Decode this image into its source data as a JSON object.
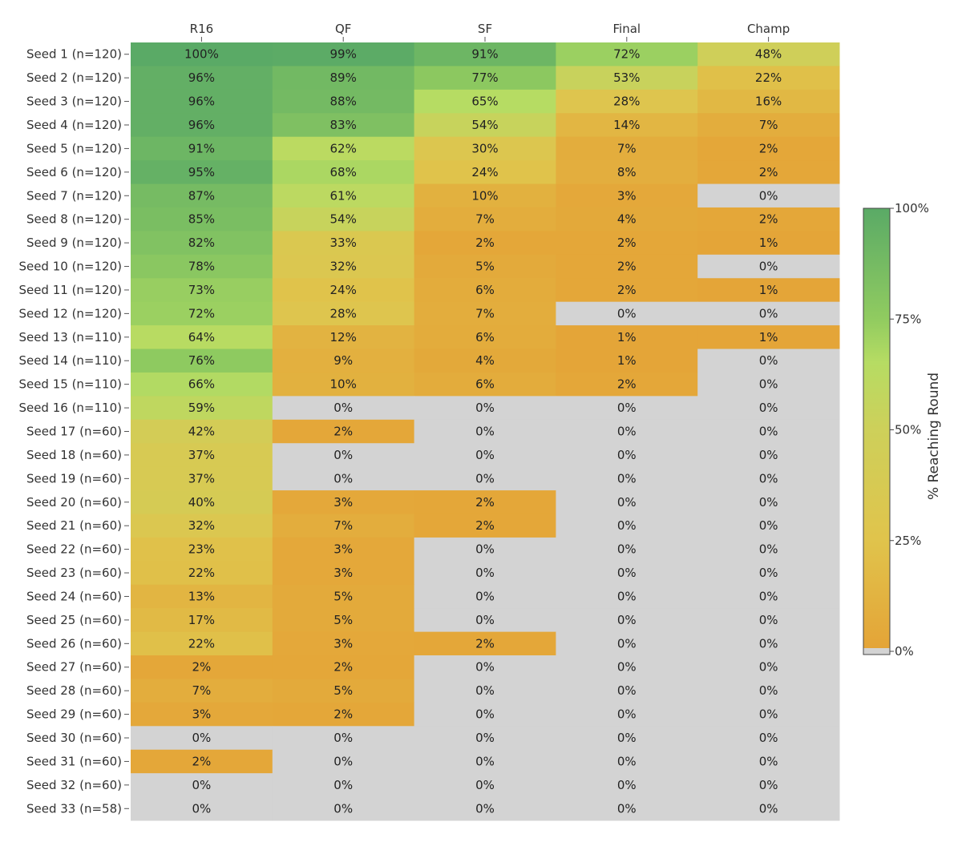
{
  "chart_data": {
    "type": "heatmap",
    "columns": [
      "R16",
      "QF",
      "SF",
      "Final",
      "Champ"
    ],
    "rows": [
      {
        "label": "Seed 1 (n=120)",
        "values": [
          100,
          99,
          91,
          72,
          48
        ]
      },
      {
        "label": "Seed 2 (n=120)",
        "values": [
          96,
          89,
          77,
          53,
          22
        ]
      },
      {
        "label": "Seed 3 (n=120)",
        "values": [
          96,
          88,
          65,
          28,
          16
        ]
      },
      {
        "label": "Seed 4 (n=120)",
        "values": [
          96,
          83,
          54,
          14,
          7
        ]
      },
      {
        "label": "Seed 5 (n=120)",
        "values": [
          91,
          62,
          30,
          7,
          2
        ]
      },
      {
        "label": "Seed 6 (n=120)",
        "values": [
          95,
          68,
          24,
          8,
          2
        ]
      },
      {
        "label": "Seed 7 (n=120)",
        "values": [
          87,
          61,
          10,
          3,
          0
        ]
      },
      {
        "label": "Seed 8 (n=120)",
        "values": [
          85,
          54,
          7,
          4,
          2
        ]
      },
      {
        "label": "Seed 9 (n=120)",
        "values": [
          82,
          33,
          2,
          2,
          1
        ]
      },
      {
        "label": "Seed 10 (n=120)",
        "values": [
          78,
          32,
          5,
          2,
          0
        ]
      },
      {
        "label": "Seed 11 (n=120)",
        "values": [
          73,
          24,
          6,
          2,
          1
        ]
      },
      {
        "label": "Seed 12 (n=120)",
        "values": [
          72,
          28,
          7,
          0,
          0
        ]
      },
      {
        "label": "Seed 13 (n=110)",
        "values": [
          64,
          12,
          6,
          1,
          1
        ]
      },
      {
        "label": "Seed 14 (n=110)",
        "values": [
          76,
          9,
          4,
          1,
          0
        ]
      },
      {
        "label": "Seed 15 (n=110)",
        "values": [
          66,
          10,
          6,
          2,
          0
        ]
      },
      {
        "label": "Seed 16 (n=110)",
        "values": [
          59,
          0,
          0,
          0,
          0
        ]
      },
      {
        "label": "Seed 17 (n=60)",
        "values": [
          42,
          2,
          0,
          0,
          0
        ]
      },
      {
        "label": "Seed 18 (n=60)",
        "values": [
          37,
          0,
          0,
          0,
          0
        ]
      },
      {
        "label": "Seed 19 (n=60)",
        "values": [
          37,
          0,
          0,
          0,
          0
        ]
      },
      {
        "label": "Seed 20 (n=60)",
        "values": [
          40,
          3,
          2,
          0,
          0
        ]
      },
      {
        "label": "Seed 21 (n=60)",
        "values": [
          32,
          7,
          2,
          0,
          0
        ]
      },
      {
        "label": "Seed 22 (n=60)",
        "values": [
          23,
          3,
          0,
          0,
          0
        ]
      },
      {
        "label": "Seed 23 (n=60)",
        "values": [
          22,
          3,
          0,
          0,
          0
        ]
      },
      {
        "label": "Seed 24 (n=60)",
        "values": [
          13,
          5,
          0,
          0,
          0
        ]
      },
      {
        "label": "Seed 25 (n=60)",
        "values": [
          17,
          5,
          0,
          0,
          0
        ]
      },
      {
        "label": "Seed 26 (n=60)",
        "values": [
          22,
          3,
          2,
          0,
          0
        ]
      },
      {
        "label": "Seed 27 (n=60)",
        "values": [
          2,
          2,
          0,
          0,
          0
        ]
      },
      {
        "label": "Seed 28 (n=60)",
        "values": [
          7,
          5,
          0,
          0,
          0
        ]
      },
      {
        "label": "Seed 29 (n=60)",
        "values": [
          3,
          2,
          0,
          0,
          0
        ]
      },
      {
        "label": "Seed 30 (n=60)",
        "values": [
          0,
          0,
          0,
          0,
          0
        ]
      },
      {
        "label": "Seed 31 (n=60)",
        "values": [
          2,
          0,
          0,
          0,
          0
        ]
      },
      {
        "label": "Seed 32 (n=60)",
        "values": [
          0,
          0,
          0,
          0,
          0
        ]
      },
      {
        "label": "Seed 33 (n=58)",
        "values": [
          0,
          0,
          0,
          0,
          0
        ]
      }
    ],
    "value_suffix": "%",
    "colorbar": {
      "title": "% Reaching Round",
      "range": [
        0,
        100
      ],
      "ticks": [
        {
          "value": 100,
          "label": "100%"
        },
        {
          "value": 75,
          "label": "75%"
        },
        {
          "value": 50,
          "label": "50%"
        },
        {
          "value": 25,
          "label": "25%"
        },
        {
          "value": 0,
          "label": "0%"
        }
      ]
    },
    "colors": {
      "zero": "#d3d3d3",
      "scale": [
        {
          "value": 0,
          "color": "#e4a437"
        },
        {
          "value": 25,
          "color": "#e0c44c"
        },
        {
          "value": 50,
          "color": "#cdd05a"
        },
        {
          "value": 65,
          "color": "#b6dc63"
        },
        {
          "value": 75,
          "color": "#90cb60"
        },
        {
          "value": 100,
          "color": "#5aaa66"
        }
      ]
    }
  }
}
